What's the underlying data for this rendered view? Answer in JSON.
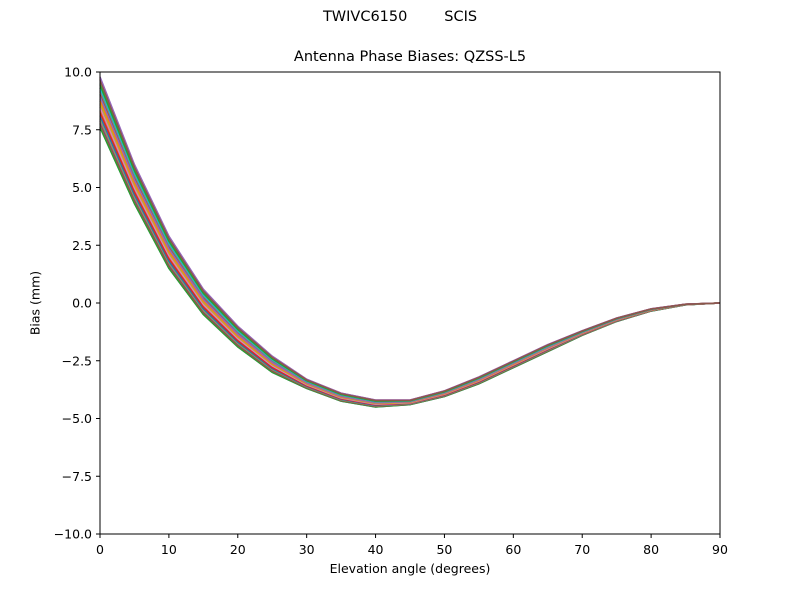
{
  "header": {
    "station": "TWIVC6150",
    "radome": "SCIS"
  },
  "chart_data": {
    "type": "line",
    "title": "Antenna Phase Biases: QZSS-L5",
    "xlabel": "Elevation angle (degrees)",
    "ylabel": "Bias (mm)",
    "xlim": [
      0,
      90
    ],
    "ylim": [
      -10,
      10
    ],
    "x_ticks": [
      0,
      10,
      20,
      30,
      40,
      50,
      60,
      70,
      80,
      90
    ],
    "y_ticks": [
      -10.0,
      -7.5,
      -5.0,
      -2.5,
      0.0,
      2.5,
      5.0,
      7.5,
      10.0
    ],
    "grid": false,
    "legend": "none",
    "x": [
      0,
      5,
      10,
      15,
      20,
      25,
      30,
      35,
      40,
      45,
      50,
      55,
      60,
      65,
      70,
      75,
      80,
      85,
      90
    ],
    "envelope_upper": [
      9.8,
      6.0,
      2.9,
      0.6,
      -1.0,
      -2.3,
      -3.3,
      -3.9,
      -4.2,
      -4.2,
      -3.8,
      -3.2,
      -2.5,
      -1.8,
      -1.2,
      -0.65,
      -0.25,
      -0.05,
      0.0
    ],
    "envelope_lower": [
      7.6,
      4.3,
      1.5,
      -0.5,
      -1.9,
      -3.0,
      -3.7,
      -4.25,
      -4.5,
      -4.4,
      -4.05,
      -3.5,
      -2.8,
      -2.1,
      -1.4,
      -0.8,
      -0.35,
      -0.08,
      0.0
    ],
    "series_count": 36,
    "series_colors": [
      "#1f77b4",
      "#ff7f0e",
      "#2ca02c",
      "#d62728",
      "#9467bd",
      "#8c564b",
      "#e377c2",
      "#7f7f7f",
      "#bcbd22",
      "#17becf"
    ]
  }
}
